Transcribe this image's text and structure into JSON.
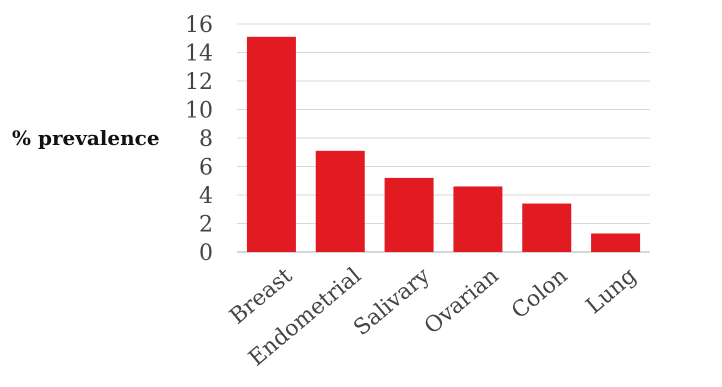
{
  "chart_data": {
    "type": "bar",
    "title": "",
    "xlabel": "",
    "ylabel": "% prevalence",
    "categories": [
      "Breast",
      "Endometrial",
      "Salivary",
      "Ovarian",
      "Colon",
      "Lung"
    ],
    "values": [
      15.1,
      7.1,
      5.2,
      4.6,
      3.4,
      1.3
    ],
    "ylim": [
      0,
      16
    ],
    "yticks": [
      0,
      2,
      4,
      6,
      8,
      10,
      12,
      14,
      16
    ],
    "grid": true,
    "legend": "none",
    "colors": {
      "bar": "#e21b23",
      "grid": "#d9d9d9",
      "tick_text": "#444444",
      "label_text": "#111111"
    }
  }
}
